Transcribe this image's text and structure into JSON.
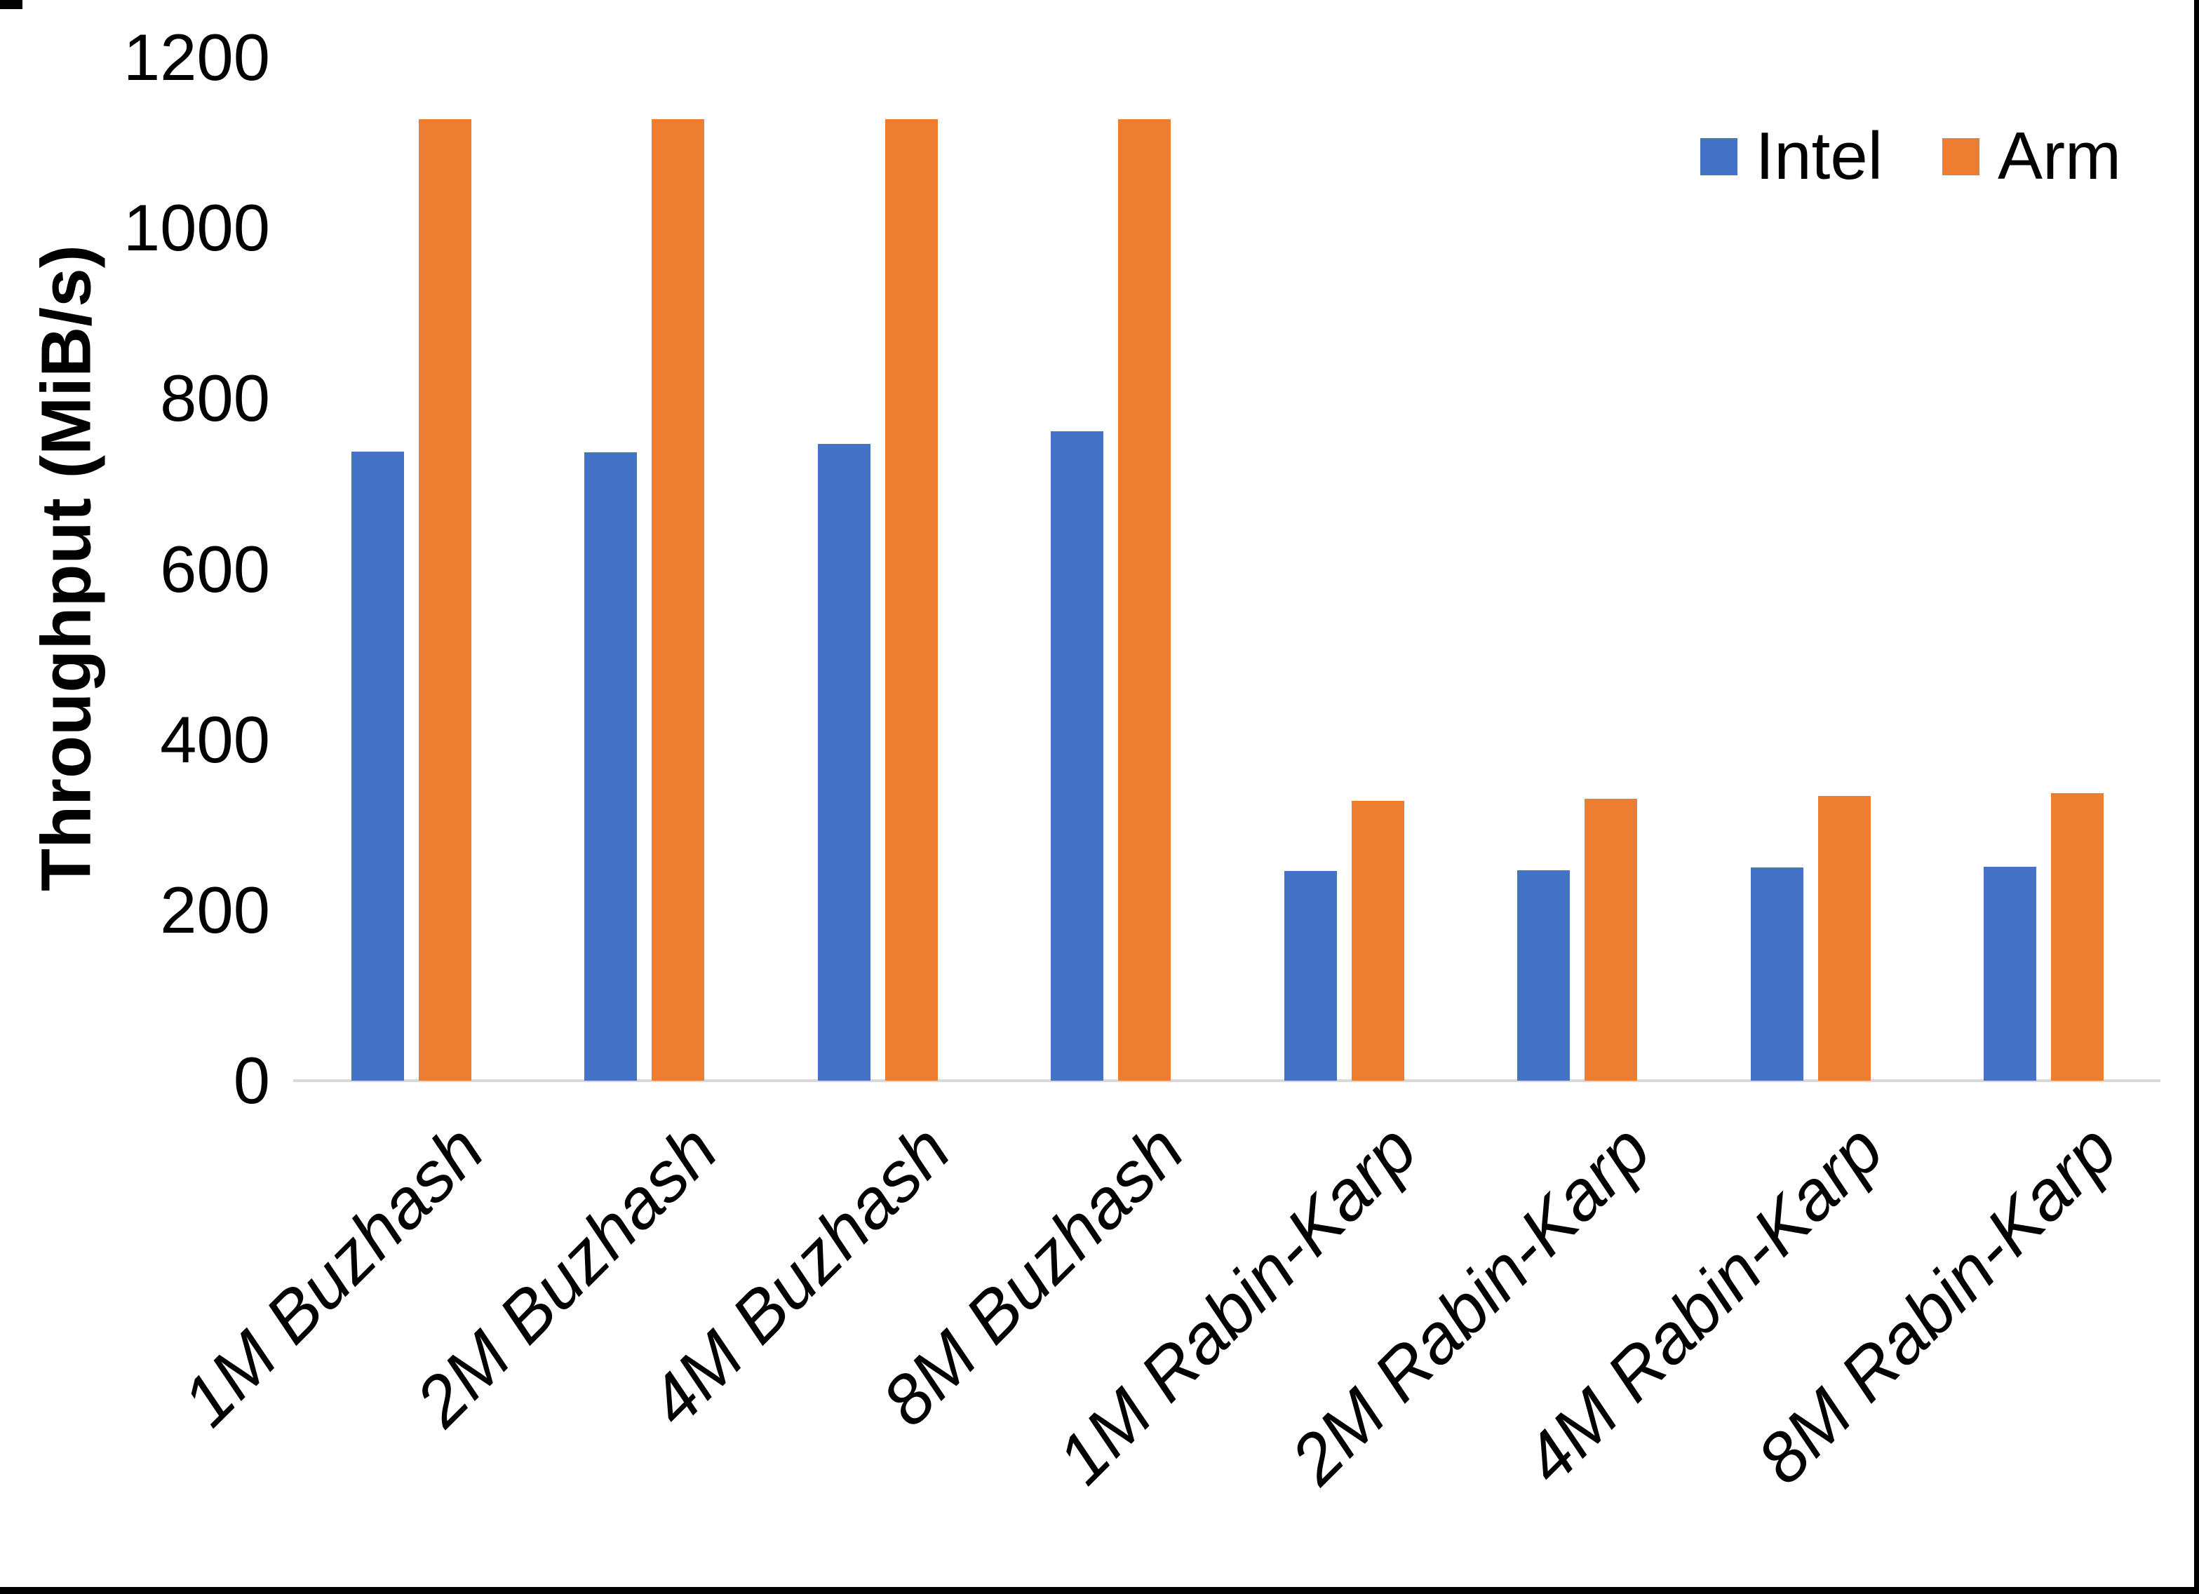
{
  "chart_data": {
    "type": "bar",
    "title": "",
    "ylabel": "Throughput (MiB/s)",
    "xlabel": "",
    "ylim": [
      0,
      1200
    ],
    "ytick_step": 200,
    "yticks": [
      "0",
      "200",
      "400",
      "600",
      "800",
      "1000",
      "1200"
    ],
    "grid": false,
    "legend_position": "top-right",
    "categories": [
      "1M Buzhash",
      "2M Buzhash",
      "4M Buzhash",
      "8M Buzhash",
      "1M Rabin-Karp",
      "2M Rabin-Karp",
      "4M Rabin-Karp",
      "8M Rabin-Karp"
    ],
    "series": [
      {
        "name": "Intel",
        "color": "#4472C4",
        "values": [
          738,
          737,
          747,
          762,
          246,
          247,
          250,
          251
        ]
      },
      {
        "name": "Arm",
        "color": "#ED7D31",
        "values": [
          1128,
          1128,
          1128,
          1128,
          328,
          331,
          334,
          337
        ]
      }
    ],
    "colors": {
      "intel": "#4472C4",
      "arm": "#ED7D31",
      "axis_line": "#D9D9D9",
      "text": "#000000"
    }
  }
}
